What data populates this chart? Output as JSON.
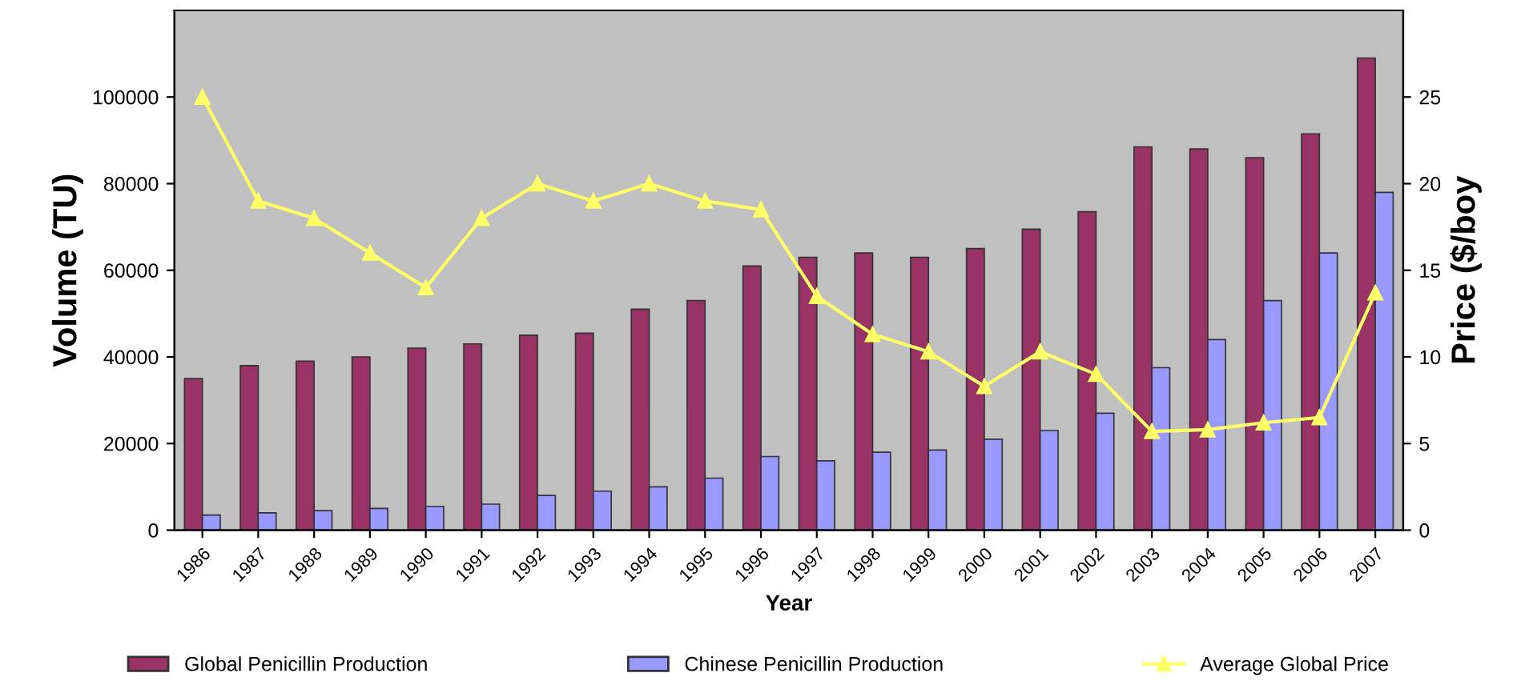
{
  "chart_data": {
    "type": "bar",
    "xlabel": "Year",
    "ylabel": "Volume (TU)",
    "y2label": "Price ($/boy",
    "categories": [
      "1986",
      "1987",
      "1988",
      "1989",
      "1990",
      "1991",
      "1992",
      "1993",
      "1994",
      "1995",
      "1996",
      "1997",
      "1998",
      "1999",
      "2000",
      "2001",
      "2002",
      "2003",
      "2004",
      "2005",
      "2006",
      "2007"
    ],
    "series": [
      {
        "name": "Global Penicillin Production",
        "color": "#993366",
        "values": [
          35000,
          38000,
          39000,
          40000,
          42000,
          43000,
          45000,
          45500,
          51000,
          53000,
          61000,
          63000,
          64000,
          63000,
          65000,
          69500,
          73500,
          88500,
          88000,
          86000,
          91500,
          109000
        ]
      },
      {
        "name": "Chinese Penicillin Production",
        "color": "#9999ff",
        "values": [
          3500,
          4000,
          4500,
          5000,
          5500,
          6000,
          8000,
          9000,
          10000,
          12000,
          17000,
          16000,
          18000,
          18500,
          21000,
          23000,
          27000,
          37500,
          44000,
          53000,
          64000,
          78000
        ]
      },
      {
        "name": "Average Global Price",
        "type": "line",
        "axis": "y2",
        "color": "#ffff66",
        "marker": "triangle",
        "values": [
          25,
          19,
          18,
          16,
          14,
          18,
          20,
          19,
          20,
          19,
          18.5,
          13.5,
          11.3,
          10.3,
          8.3,
          10.3,
          9,
          5.7,
          5.8,
          6.2,
          6.5,
          13.7
        ]
      }
    ],
    "ylim": [
      0,
      120000
    ],
    "yticks": [
      0,
      20000,
      40000,
      60000,
      80000,
      100000
    ],
    "y2lim": [
      0,
      30
    ],
    "y2ticks": [
      0,
      5,
      10,
      15,
      20,
      25
    ],
    "grid": false,
    "legend": "bottom"
  }
}
